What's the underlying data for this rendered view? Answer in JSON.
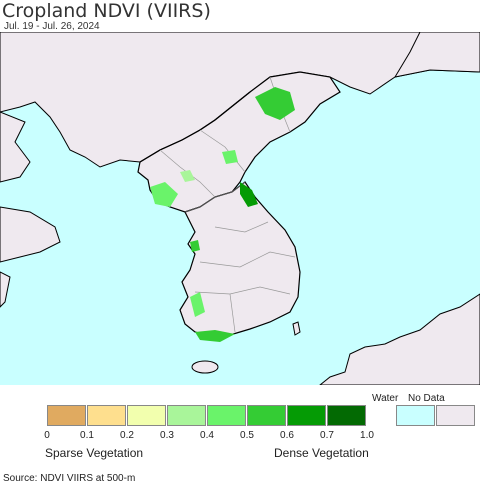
{
  "header": {
    "title": "Cropland NDVI (VIIRS)",
    "subtitle": "Jul. 19 - Jul. 26, 2024"
  },
  "legend": {
    "swatches": [
      {
        "color": "#e0aa60"
      },
      {
        "color": "#fedf8e"
      },
      {
        "color": "#f2ffae"
      },
      {
        "color": "#a9f59a"
      },
      {
        "color": "#6af36a"
      },
      {
        "color": "#34cc34"
      },
      {
        "color": "#059b05"
      },
      {
        "color": "#036a03"
      },
      {
        "color": "#c9ffff"
      },
      {
        "color": "#efe9ef"
      }
    ],
    "ticks": [
      "0",
      "0.1",
      "0.2",
      "0.3",
      "0.4",
      "0.5",
      "0.6",
      "0.7",
      "1.0"
    ],
    "water_label": "Water",
    "nodata_label": "No Data",
    "sparse_label": "Sparse Vegetation",
    "dense_label": "Dense Vegetation"
  },
  "footer": {
    "source": "Source: NDVI VIIRS at 500-m"
  },
  "colors": {
    "water": "#c9ffff",
    "land": "#efe9ef",
    "border": "#999999",
    "coast": "#000000"
  }
}
